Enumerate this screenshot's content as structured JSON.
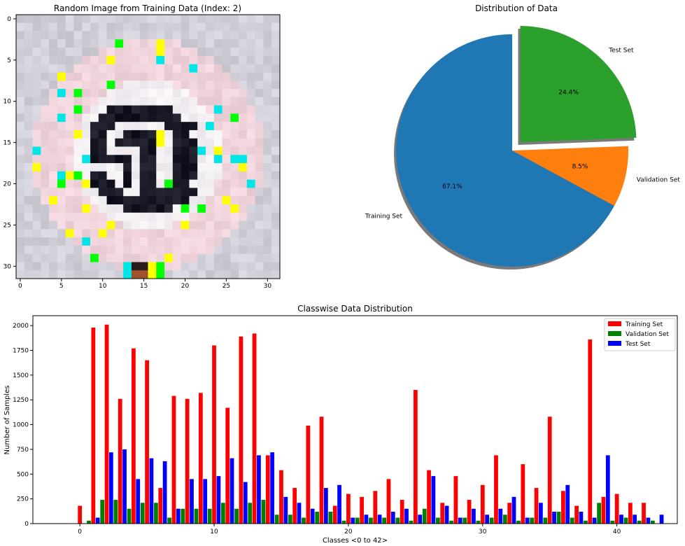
{
  "chart_data": [
    {
      "type": "heatmap",
      "title": "Random Image from Training Data (Index: 2)",
      "xlim": [
        -0.5,
        31.5
      ],
      "ylim": [
        31.5,
        -0.5
      ],
      "x_ticks": [
        "0",
        "5",
        "10",
        "15",
        "20",
        "25",
        "30"
      ],
      "y_ticks": [
        "0",
        "5",
        "10",
        "15",
        "20",
        "25",
        "30"
      ],
      "image_size": [
        32,
        32
      ],
      "content": "pixelated 30 km/h speed-limit traffic sign"
    },
    {
      "type": "pie",
      "title": "Distribution of Data",
      "labels": [
        "Training Set",
        "Validation Set",
        "Test Set"
      ],
      "values": [
        67.1,
        8.5,
        24.4
      ],
      "pct_labels": [
        "67.1%",
        "8.5%",
        "24.4%"
      ],
      "colors": [
        "#1f77b4",
        "#ff7f0e",
        "#2ca02c"
      ],
      "explode": [
        0,
        0,
        0.1
      ],
      "shadow": true
    },
    {
      "type": "bar",
      "title": "Classwise Data Distribution",
      "xlabel": "Classes <0 to 42>",
      "ylabel": "Number of Samples",
      "ylim": [
        0,
        2100
      ],
      "xlim": [
        -3.5,
        44.5
      ],
      "x_ticks": [
        0,
        10,
        20,
        30,
        40
      ],
      "y_ticks": [
        0,
        250,
        500,
        750,
        1000,
        1250,
        1500,
        1750,
        2000
      ],
      "legend": "top-right",
      "categories": [
        0,
        1,
        2,
        3,
        4,
        5,
        6,
        7,
        8,
        9,
        10,
        11,
        12,
        13,
        14,
        15,
        16,
        17,
        18,
        19,
        20,
        21,
        22,
        23,
        24,
        25,
        26,
        27,
        28,
        29,
        30,
        31,
        32,
        33,
        34,
        35,
        36,
        37,
        38,
        39,
        40,
        41,
        42
      ],
      "series": [
        {
          "name": "Training Set",
          "color": "#ff0000",
          "offset": 0,
          "values": [
            180,
            1980,
            2010,
            1260,
            1770,
            1650,
            360,
            1290,
            1260,
            1320,
            1800,
            1170,
            1890,
            1920,
            690,
            540,
            360,
            990,
            1080,
            180,
            300,
            270,
            330,
            450,
            240,
            1350,
            540,
            210,
            480,
            240,
            390,
            690,
            210,
            600,
            360,
            1080,
            330,
            180,
            1860,
            270,
            300,
            210,
            210
          ]
        },
        {
          "name": "Validation Set",
          "color": "#008000",
          "offset": 1,
          "values": [
            30,
            240,
            240,
            150,
            210,
            210,
            60,
            150,
            150,
            150,
            210,
            150,
            210,
            240,
            90,
            90,
            60,
            120,
            120,
            30,
            60,
            60,
            60,
            60,
            30,
            150,
            60,
            30,
            60,
            30,
            60,
            90,
            30,
            60,
            60,
            120,
            60,
            30,
            210,
            30,
            60,
            30,
            30
          ]
        },
        {
          "name": "Test Set",
          "color": "#0000ff",
          "offset": 2,
          "values": [
            60,
            720,
            750,
            450,
            660,
            630,
            150,
            450,
            450,
            480,
            660,
            420,
            690,
            720,
            270,
            210,
            150,
            360,
            390,
            60,
            90,
            90,
            120,
            150,
            90,
            480,
            180,
            60,
            150,
            90,
            150,
            270,
            60,
            210,
            120,
            390,
            120,
            60,
            690,
            90,
            90,
            60,
            90
          ]
        }
      ]
    }
  ]
}
